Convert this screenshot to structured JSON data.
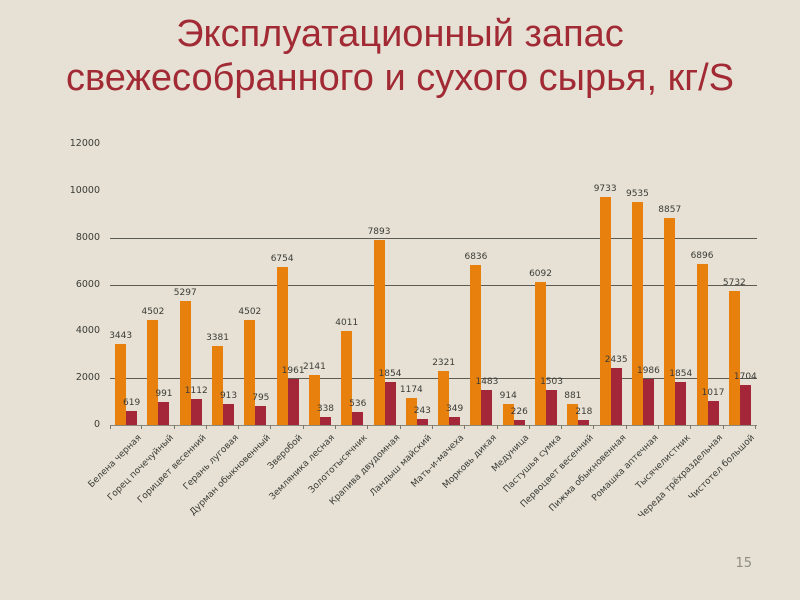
{
  "title": "Эксплуатационный запас\nсвежесобранного и сухого сырья, кг/S",
  "page_number": "15",
  "colors": {
    "background": "#E6E1D4",
    "title": "#A12A35",
    "bar_fresh": "#E8800D",
    "bar_dry": "#A32639",
    "gridline": "#5C5B53",
    "axis": "#8B887B",
    "label": "#3B3B37",
    "page_number": "#8F8D83"
  },
  "chart_data": {
    "type": "bar",
    "title": "Эксплуатационный запас свежесобранного и сухого сырья, кг/S",
    "xlabel": "",
    "ylabel": "",
    "ylim": [
      0,
      12000
    ],
    "y_ticks": [
      0,
      2000,
      4000,
      6000,
      8000,
      10000,
      12000
    ],
    "gridlines": [
      2000,
      6000,
      8000
    ],
    "legend": "none",
    "grid": "partial-horizontal",
    "categories": [
      "Белена черная",
      "Горец почечуйный",
      "Горицвет весенний",
      "Герань луговая",
      "Дурман обыкновенный",
      "Зверобой",
      "Земляника лесная",
      "Золототысячник",
      "Крапива двудомная",
      "Ландыш майский",
      "Мать-и-мачеха",
      "Морковь дикая",
      "Медуница",
      "Пастушья сумка",
      "Первоцвет весенний",
      "Пижма обыкновенная",
      "Ромашка аптечная",
      "Тысячелистник",
      "Череда трёхраздельная",
      "Чистотел большой"
    ],
    "series": [
      {
        "name": "свежесобранное сырьё",
        "color": "#E8800D",
        "values": [
          3443,
          4502,
          5297,
          3381,
          4502,
          6754,
          2141,
          4011,
          7893,
          1174,
          2321,
          6836,
          914,
          6092,
          881,
          9733,
          9535,
          8857,
          6896,
          5732
        ]
      },
      {
        "name": "сухое сырьё",
        "color": "#A32639",
        "values": [
          619,
          991,
          1112,
          913,
          795,
          1961,
          338,
          536,
          1854,
          243,
          349,
          1483,
          226,
          1503,
          218,
          2435,
          1986,
          1854,
          1017,
          1704
        ]
      }
    ]
  }
}
